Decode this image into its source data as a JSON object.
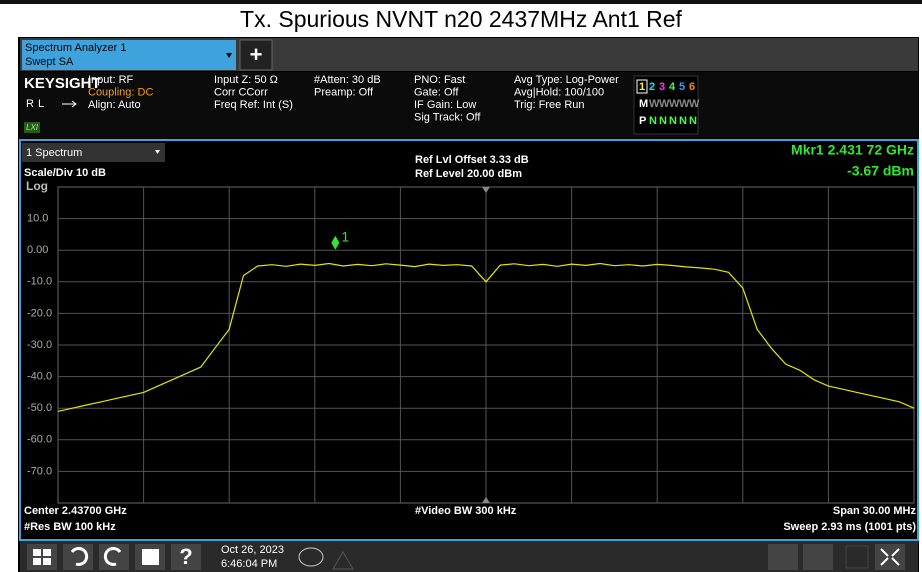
{
  "header": {
    "title": "Tx. Spurious NVNT n20 2437MHz Ant1 Ref"
  },
  "tab": {
    "line1": "Spectrum Analyzer 1",
    "line2": "Swept SA",
    "add": "+"
  },
  "info": {
    "brand": "KEYSIGHT",
    "rl": "RL",
    "lxi": "LXI",
    "columns": [
      [
        "Input: RF",
        "Coupling: DC",
        "Align: Auto"
      ],
      [
        "Input Z: 50 Ω",
        "Corr CCorr",
        "Freq Ref: Int (S)"
      ],
      [
        "#Atten: 30 dB",
        "Preamp: Off"
      ],
      [
        "PNO: Fast",
        "Gate: Off",
        "IF Gain: Low",
        "Sig Track: Off"
      ],
      [
        "Avg Type: Log-Power",
        "Avg|Hold: 100/100",
        "Trig: Free Run"
      ]
    ],
    "trace_rows": [
      [
        "1",
        "2",
        "3",
        "4",
        "5",
        "6"
      ],
      [
        "M",
        "W",
        "W",
        "W",
        "W",
        "W"
      ],
      [
        "P",
        "N",
        "N",
        "N",
        "N",
        "N"
      ]
    ]
  },
  "chart_data": {
    "type": "line",
    "window": "1 Spectrum",
    "scale": "Scale/Div 10 dB",
    "scale_type": "Log",
    "ref_offset": "Ref Lvl Offset 3.33 dB",
    "ref_level": "Ref Level 20.00 dBm",
    "center": "Center 2.43700 GHz",
    "res_bw": "#Res BW 100 kHz",
    "video_bw": "#Video BW 300 kHz",
    "span": "Span 30.00 MHz",
    "sweep": "Sweep 2.93 ms (1001 pts)",
    "color": "#e6e600",
    "xlim": [
      2422,
      2452
    ],
    "ylim": [
      -80,
      20
    ],
    "yticks": [
      {
        "value": 10,
        "label": "10.0"
      },
      {
        "value": 0,
        "label": "0.00"
      },
      {
        "value": -10,
        "label": "-10.0"
      },
      {
        "value": -20,
        "label": "-20.0"
      },
      {
        "value": -30,
        "label": "-30.0"
      },
      {
        "value": -40,
        "label": "-40.0"
      },
      {
        "value": -50,
        "label": "-50.0"
      },
      {
        "value": -60,
        "label": "-60.0"
      },
      {
        "value": -70,
        "label": "-70.0"
      }
    ],
    "x": [
      2422,
      2422.5,
      2423,
      2423.5,
      2424,
      2424.5,
      2425,
      2425.5,
      2426,
      2426.5,
      2427,
      2427.5,
      2428,
      2428.5,
      2429,
      2429.5,
      2430,
      2430.5,
      2431,
      2431.5,
      2432,
      2432.5,
      2433,
      2433.5,
      2434,
      2434.5,
      2435,
      2435.5,
      2436,
      2436.5,
      2437,
      2437.5,
      2438,
      2438.5,
      2439,
      2439.5,
      2440,
      2440.5,
      2441,
      2441.5,
      2442,
      2442.5,
      2443,
      2443.5,
      2444,
      2444.5,
      2445,
      2445.5,
      2446,
      2446.5,
      2447,
      2447.5,
      2448,
      2448.5,
      2449,
      2449.5,
      2450,
      2450.5,
      2451,
      2451.5,
      2452
    ],
    "values": [
      -51,
      -50,
      -49,
      -48,
      -47,
      -46,
      -45,
      -43,
      -41,
      -39,
      -37,
      -31,
      -25,
      -8,
      -5,
      -4.6,
      -5.1,
      -4.4,
      -4.8,
      -4.2,
      -5,
      -4.5,
      -4.9,
      -4.3,
      -4.7,
      -5.2,
      -4.4,
      -4.8,
      -4.6,
      -5,
      -10,
      -4.7,
      -4.3,
      -4.9,
      -4.5,
      -5.1,
      -4.4,
      -4.8,
      -4.2,
      -4.9,
      -4.6,
      -5,
      -4.5,
      -4.8,
      -5.3,
      -5.6,
      -6,
      -7,
      -12,
      -25,
      -31,
      -36,
      -38,
      -41,
      -43,
      -44,
      -45,
      -46,
      -47,
      -48,
      -50
    ],
    "marker": {
      "label": "1",
      "freq": 2431.72,
      "value": -3.67,
      "readout_freq": "Mkr1  2.431 72 GHz",
      "readout_value": "-3.67 dBm"
    }
  },
  "taskbar": {
    "date": "Oct 26, 2023",
    "time": "6:46:04 PM"
  }
}
